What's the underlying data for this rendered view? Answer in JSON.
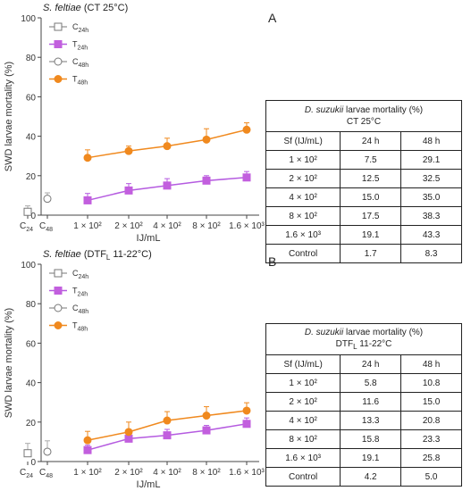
{
  "colors": {
    "treated": "#c25fde",
    "treated_line": "#b55be0",
    "time48": "#f0891e",
    "control": "#777777",
    "axis": "#444444",
    "error": "#aaaaaa"
  },
  "chart_data": [
    {
      "panel": "A",
      "type": "line",
      "title_italic": "S. feltiae",
      "title_rest": " (CT 25°C)",
      "ylabel": "SWD larvae mortality (%)",
      "xlabel": "IJ/mL",
      "ylim": [
        0,
        100
      ],
      "yticks": [
        "0",
        "20",
        "40",
        "60",
        "80",
        "100"
      ],
      "control_categories": [
        "C24",
        "C48"
      ],
      "categories": [
        "1 × 10²",
        "2 × 10²",
        "4 × 10²",
        "8 × 10²",
        "1.6 × 10³"
      ],
      "legend": [
        "C24h",
        "T24h",
        "C48h",
        "T48h"
      ],
      "series": [
        {
          "name": "T24h",
          "values": [
            7.5,
            12.5,
            15.0,
            17.5,
            19.1
          ],
          "errors": [
            3.5,
            3.5,
            3.5,
            2.5,
            3.0
          ]
        },
        {
          "name": "T48h",
          "values": [
            29.1,
            32.5,
            35.0,
            38.3,
            43.3
          ],
          "errors": [
            4.0,
            2.5,
            4.0,
            5.5,
            3.5
          ]
        }
      ],
      "controls": [
        {
          "name": "C24h",
          "value": 1.7,
          "error": 3.0
        },
        {
          "name": "C48h",
          "value": 8.3,
          "error": 3.0
        }
      ]
    },
    {
      "panel": "B",
      "type": "line",
      "title_italic": "S. feltiae",
      "title_rest": " (DTF",
      "title_sub": "L",
      "title_end": " 11-22°C)",
      "ylabel": "SWD larvae mortality (%)",
      "xlabel": "IJ/mL",
      "ylim": [
        0,
        100
      ],
      "yticks": [
        "0",
        "20",
        "40",
        "60",
        "80",
        "100"
      ],
      "control_categories": [
        "C24",
        "C48"
      ],
      "categories": [
        "1 × 10²",
        "2 × 10²",
        "4 × 10²",
        "8 × 10²",
        "1.6 × 10³"
      ],
      "legend": [
        "C24h",
        "T24h",
        "C48h",
        "T48h"
      ],
      "series": [
        {
          "name": "T24h",
          "values": [
            5.8,
            11.6,
            13.3,
            15.8,
            19.1
          ],
          "errors": [
            2.5,
            3.0,
            3.0,
            2.5,
            3.0
          ]
        },
        {
          "name": "T48h",
          "values": [
            10.8,
            15.0,
            20.8,
            23.3,
            25.8
          ],
          "errors": [
            4.5,
            5.0,
            4.5,
            4.5,
            4.0
          ]
        }
      ],
      "controls": [
        {
          "name": "C24h",
          "value": 4.2,
          "error": 5.0
        },
        {
          "name": "C48h",
          "value": 5.0,
          "error": 5.5
        }
      ]
    }
  ],
  "tables": [
    {
      "letter": "A",
      "title_italic": "D. suzukii",
      "title_rest": " larvae mortality (%)",
      "title_line2": "CT 25°C",
      "headers": [
        "Sf (IJ/mL)",
        "24 h",
        "48 h"
      ],
      "rows": [
        [
          "1 × 10²",
          "7.5",
          "29.1"
        ],
        [
          "2 × 10²",
          "12.5",
          "32.5"
        ],
        [
          "4 × 10²",
          "15.0",
          "35.0"
        ],
        [
          "8 × 10²",
          "17.5",
          "38.3"
        ],
        [
          "1.6 × 10³",
          "19.1",
          "43.3"
        ],
        [
          "Control",
          "1.7",
          "8.3"
        ]
      ]
    },
    {
      "letter": "B",
      "title_italic": "D. suzukii",
      "title_rest": " larvae mortality (%)",
      "title_line2_pre": "DTF",
      "title_line2_sub": "L",
      "title_line2_post": " 11-22°C",
      "headers": [
        "Sf (IJ/mL)",
        "24 h",
        "48 h"
      ],
      "rows": [
        [
          "1 × 10²",
          "5.8",
          "10.8"
        ],
        [
          "2 × 10²",
          "11.6",
          "15.0"
        ],
        [
          "4 × 10²",
          "13.3",
          "20.8"
        ],
        [
          "8 × 10²",
          "15.8",
          "23.3"
        ],
        [
          "1.6 × 10³",
          "19.1",
          "25.8"
        ],
        [
          "Control",
          "4.2",
          "5.0"
        ]
      ]
    }
  ]
}
